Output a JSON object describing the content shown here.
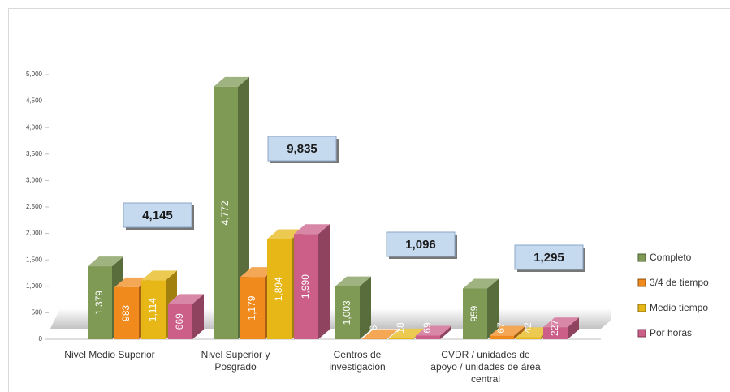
{
  "chart_data": {
    "type": "bar3d",
    "categories": [
      "Nivel Medio Superior",
      "Nivel Superior y Posgrado",
      "Centros de investigación",
      "CVDR / unidades de apoyo / unidades de área central"
    ],
    "series": [
      {
        "name": "Completo",
        "color": "#7f9a55",
        "values": [
          1379,
          4772,
          1003,
          959
        ],
        "value_labels": [
          "1,379",
          "4,772",
          "1,003",
          "959"
        ]
      },
      {
        "name": "3/4 de tiempo",
        "color": "#f08a1c",
        "values": [
          983,
          1179,
          6,
          67
        ],
        "value_labels": [
          "983",
          "1,179",
          "6",
          "67"
        ]
      },
      {
        "name": "Medio tiempo",
        "color": "#e6b717",
        "values": [
          1114,
          1894,
          18,
          42
        ],
        "value_labels": [
          "1,114",
          "1,894",
          "18",
          "42"
        ]
      },
      {
        "name": "Por horas",
        "color": "#cc5f88",
        "values": [
          669,
          1990,
          69,
          227
        ],
        "value_labels": [
          "669",
          "1,990",
          "69",
          "227"
        ]
      }
    ],
    "totals": {
      "values": [
        4145,
        9835,
        1096,
        1295
      ],
      "value_labels": [
        "4,145",
        "9,835",
        "1,096",
        "1,295"
      ]
    },
    "ylim": [
      0,
      5000
    ],
    "yticks": [
      0,
      500,
      {
        "value": 1000,
        "label": "1,000"
      },
      {
        "value": 1500,
        "label": "1,500"
      },
      {
        "value": 2000,
        "label": "2,000"
      },
      {
        "value": 2500,
        "label": "2,500"
      },
      {
        "value": 3000,
        "label": "3,000"
      },
      {
        "value": 3500,
        "label": "3,500"
      },
      {
        "value": 4000,
        "label": "4,000"
      },
      {
        "value": 4500,
        "label": "4,500"
      },
      {
        "value": 5000,
        "label": "5,000"
      }
    ],
    "legend": "right"
  }
}
